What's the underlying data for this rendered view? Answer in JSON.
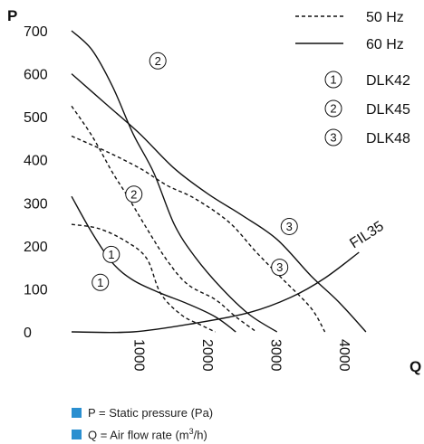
{
  "chart_data": {
    "type": "line",
    "ylabel": "P",
    "xlabel": "Q",
    "xlim": [
      0,
      4500
    ],
    "ylim": [
      0,
      700
    ],
    "xticks": [
      "1000",
      "2000",
      "3000",
      "4000"
    ],
    "yticks": [
      "0",
      "100",
      "200",
      "300",
      "400",
      "500",
      "600",
      "700"
    ],
    "legend": {
      "styles": [
        {
          "label": "50 Hz",
          "dash": true
        },
        {
          "label": "60 Hz",
          "dash": false
        }
      ],
      "models": [
        {
          "mark": "1",
          "label": "DLK42"
        },
        {
          "mark": "2",
          "label": "DLK45"
        },
        {
          "mark": "3",
          "label": "DLK48"
        }
      ]
    },
    "series": [
      {
        "model": "1",
        "freq": "50 Hz",
        "points": [
          [
            0,
            250
          ],
          [
            400,
            240
          ],
          [
            800,
            210
          ],
          [
            1100,
            170
          ],
          [
            1300,
            90
          ],
          [
            1600,
            40
          ],
          [
            1900,
            15
          ],
          [
            2100,
            0
          ]
        ]
      },
      {
        "model": "1",
        "freq": "60 Hz",
        "points": [
          [
            0,
            315
          ],
          [
            300,
            230
          ],
          [
            600,
            160
          ],
          [
            900,
            120
          ],
          [
            1300,
            90
          ],
          [
            1700,
            65
          ],
          [
            2100,
            35
          ],
          [
            2400,
            0
          ]
        ]
      },
      {
        "model": "2",
        "freq": "50 Hz",
        "points": [
          [
            0,
            525
          ],
          [
            300,
            455
          ],
          [
            600,
            370
          ],
          [
            800,
            320
          ],
          [
            1100,
            240
          ],
          [
            1400,
            165
          ],
          [
            1700,
            110
          ],
          [
            2100,
            75
          ],
          [
            2400,
            35
          ],
          [
            2700,
            0
          ]
        ]
      },
      {
        "model": "2",
        "freq": "60 Hz",
        "points": [
          [
            0,
            700
          ],
          [
            300,
            655
          ],
          [
            600,
            570
          ],
          [
            900,
            460
          ],
          [
            1200,
            370
          ],
          [
            1500,
            250
          ],
          [
            1800,
            175
          ],
          [
            2200,
            100
          ],
          [
            2600,
            40
          ],
          [
            3000,
            0
          ]
        ]
      },
      {
        "model": "3",
        "freq": "50 Hz",
        "points": [
          [
            0,
            455
          ],
          [
            500,
            420
          ],
          [
            1000,
            380
          ],
          [
            1400,
            340
          ],
          [
            1800,
            310
          ],
          [
            2300,
            255
          ],
          [
            2700,
            185
          ],
          [
            3100,
            120
          ],
          [
            3500,
            55
          ],
          [
            3700,
            0
          ]
        ]
      },
      {
        "model": "3",
        "freq": "60 Hz",
        "points": [
          [
            0,
            600
          ],
          [
            500,
            530
          ],
          [
            1000,
            460
          ],
          [
            1500,
            380
          ],
          [
            2000,
            320
          ],
          [
            2500,
            270
          ],
          [
            3000,
            215
          ],
          [
            3500,
            130
          ],
          [
            3900,
            70
          ],
          [
            4300,
            0
          ]
        ]
      },
      {
        "label": "FIL35",
        "points": [
          [
            0,
            0
          ],
          [
            900,
            0
          ],
          [
            1800,
            20
          ],
          [
            2600,
            45
          ],
          [
            3200,
            80
          ],
          [
            3700,
            125
          ],
          [
            4200,
            185
          ]
        ]
      }
    ],
    "curve_markers": [
      {
        "mark": "1",
        "at": [
          580,
          180
        ]
      },
      {
        "mark": "1",
        "at": [
          420,
          115
        ]
      },
      {
        "mark": "2",
        "at": [
          1260,
          630
        ]
      },
      {
        "mark": "2",
        "at": [
          910,
          320
        ]
      },
      {
        "mark": "3",
        "at": [
          3180,
          245
        ]
      },
      {
        "mark": "3",
        "at": [
          3040,
          150
        ]
      }
    ]
  },
  "notes": {
    "pressure": "P = Static pressure (Pa)",
    "flow_prefix": "Q = Air flow rate (m",
    "flow_exp": "3",
    "flow_suffix": "/h)"
  }
}
